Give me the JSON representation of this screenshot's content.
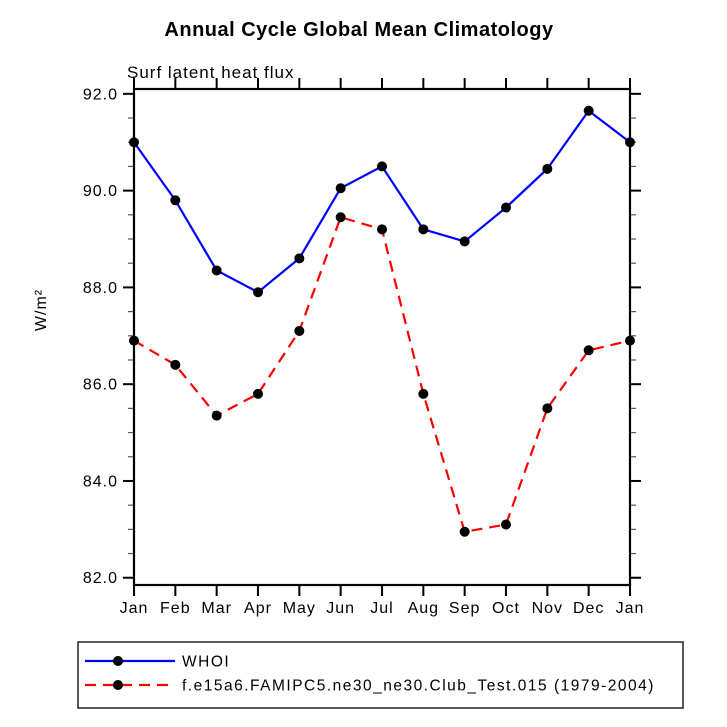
{
  "chart": {
    "title": "Annual Cycle Global Mean Climatology",
    "subtitle": "Surf latent heat flux",
    "ylabel": "W/m²"
  },
  "chart_data": {
    "type": "line",
    "categories": [
      "Jan",
      "Feb",
      "Mar",
      "Apr",
      "May",
      "Jun",
      "Jul",
      "Aug",
      "Sep",
      "Oct",
      "Nov",
      "Dec",
      "Jan"
    ],
    "series": [
      {
        "name": "WHOI",
        "color": "#0000ff",
        "style": "solid",
        "marker": "filled-circle",
        "marker_color": "#000000",
        "values": [
          91.0,
          89.8,
          88.35,
          87.9,
          88.6,
          90.05,
          90.5,
          89.2,
          88.95,
          89.65,
          90.45,
          91.65,
          91.0
        ]
      },
      {
        "name": "f.e15a6.FAMIPC5.ne30_ne30.Club_Test.015 (1979-2004)",
        "color": "#ff0000",
        "style": "dashed",
        "marker": "filled-circle",
        "marker_color": "#000000",
        "values": [
          86.9,
          86.4,
          85.35,
          85.8,
          87.1,
          89.45,
          89.2,
          85.8,
          82.95,
          83.1,
          85.5,
          86.7,
          86.9
        ]
      }
    ],
    "ylim": [
      81.85,
      92.1
    ],
    "yticks_major": [
      82,
      84,
      86,
      88,
      90,
      92
    ],
    "ytick_labels": [
      "82.0",
      "84.0",
      "86.0",
      "88.0",
      "90.0",
      "92.0"
    ],
    "yminor_step": 0.5,
    "grid": false,
    "frame_color": "#000000",
    "legend_position": "bottom"
  }
}
